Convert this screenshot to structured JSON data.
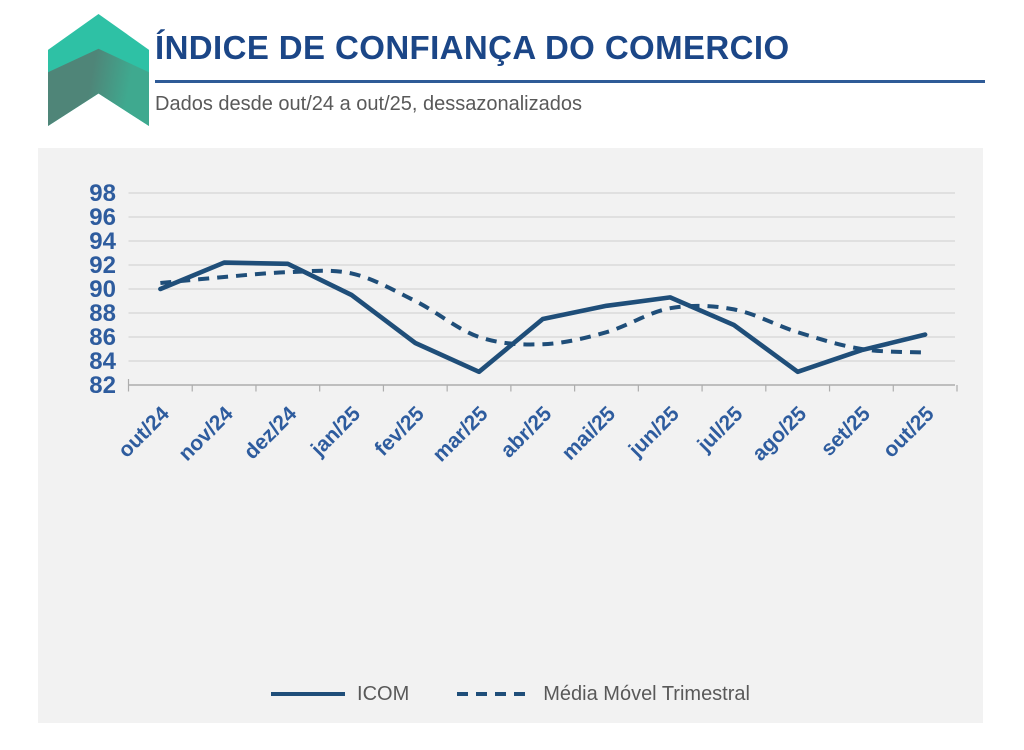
{
  "header": {
    "title": "ÍNDICE DE CONFIANÇA DO COMERCIO",
    "subtitle": "Dados desde out/24 a out/25, dessazonalizados",
    "logo_icon": "chevron-up-logo",
    "colors": {
      "title": "#1B4687",
      "rule": "#2E5B97",
      "subtitle": "#595959",
      "logo_teal": "#2EC1A5",
      "logo_dark_teal": "#4F8578"
    }
  },
  "chart_data": {
    "type": "line",
    "title": "",
    "xlabel": "",
    "ylabel": "",
    "categories": [
      "out/24",
      "nov/24",
      "dez/24",
      "jan/25",
      "fev/25",
      "mar/25",
      "abr/25",
      "mai/25",
      "jun/25",
      "jul/25",
      "ago/25",
      "set/25",
      "out/25"
    ],
    "series": [
      {
        "name": "ICOM",
        "style": "solid",
        "smooth": false,
        "values": [
          90.0,
          92.2,
          92.1,
          89.5,
          85.5,
          83.1,
          87.5,
          88.6,
          89.3,
          87.0,
          83.1,
          84.9,
          86.2
        ]
      },
      {
        "name": "Média Móvel Trimestral",
        "style": "dashed",
        "smooth": true,
        "values": [
          90.5,
          91.0,
          91.4,
          91.3,
          89.0,
          86.0,
          85.4,
          86.4,
          88.4,
          88.3,
          86.4,
          85.0,
          84.7
        ]
      }
    ],
    "ylim": [
      82,
      98
    ],
    "yticks": [
      98,
      96,
      94,
      92,
      90,
      88,
      86,
      84,
      82
    ],
    "xlabel_angle": -45,
    "grid": true,
    "legend_position": "bottom",
    "line_color": "#1F4E79",
    "axis_label_color": "#2E5C9E",
    "plot_bg": "#F2F2F2",
    "grid_color": "#D6D6D6",
    "axis_color": "#ADADAD"
  }
}
